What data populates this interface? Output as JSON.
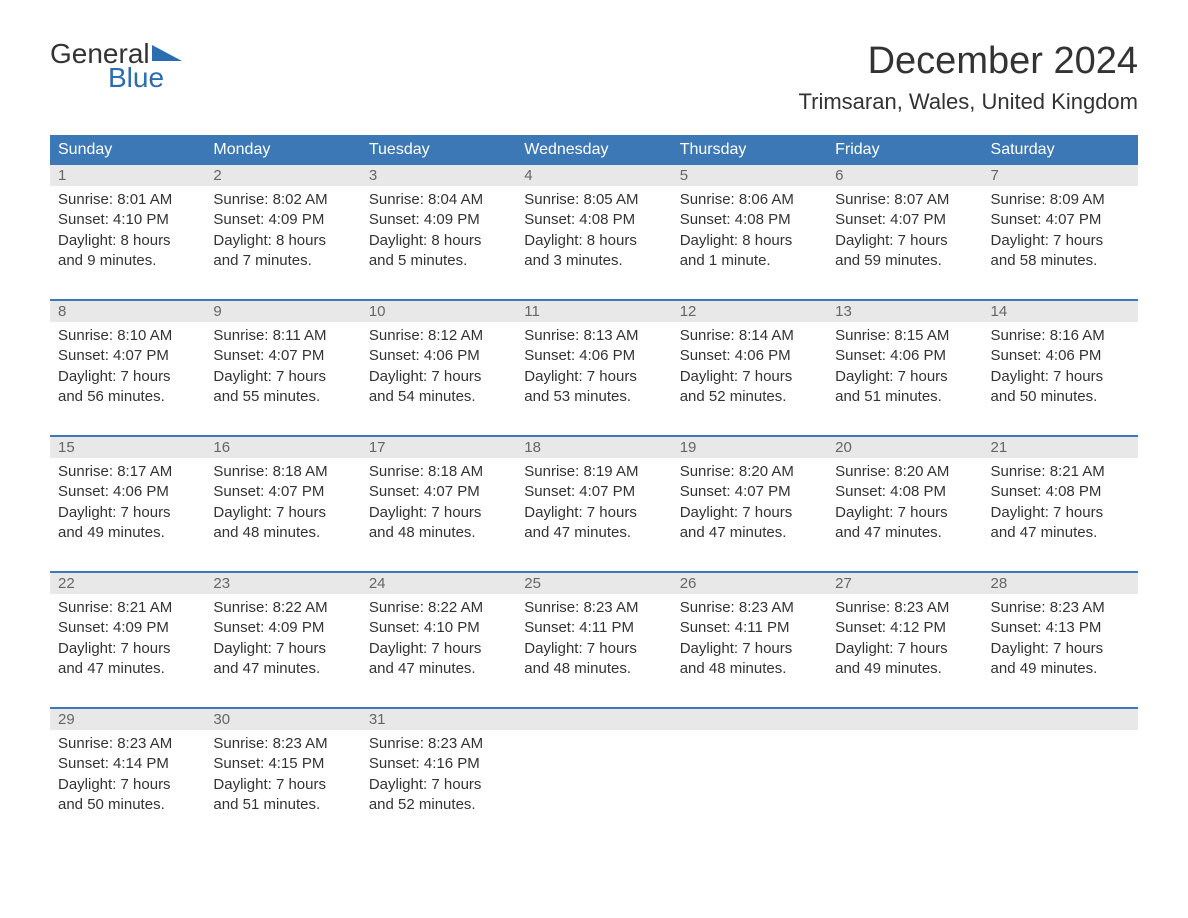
{
  "logo": {
    "general": "General",
    "blue": "Blue"
  },
  "title": "December 2024",
  "location": "Trimsaran, Wales, United Kingdom",
  "colors": {
    "header_bg": "#3b78b5",
    "header_text": "#ffffff",
    "daynum_bg": "#e8e8e8",
    "daynum_text": "#666666",
    "body_text": "#333333",
    "accent": "#2a6db0",
    "page_bg": "#ffffff"
  },
  "typography": {
    "title_fontsize": 38,
    "location_fontsize": 22,
    "header_fontsize": 16,
    "cell_fontsize": 15
  },
  "day_headers": [
    "Sunday",
    "Monday",
    "Tuesday",
    "Wednesday",
    "Thursday",
    "Friday",
    "Saturday"
  ],
  "weeks": [
    [
      {
        "day": "1",
        "sunrise": "Sunrise: 8:01 AM",
        "sunset": "Sunset: 4:10 PM",
        "d1": "Daylight: 8 hours",
        "d2": "and 9 minutes."
      },
      {
        "day": "2",
        "sunrise": "Sunrise: 8:02 AM",
        "sunset": "Sunset: 4:09 PM",
        "d1": "Daylight: 8 hours",
        "d2": "and 7 minutes."
      },
      {
        "day": "3",
        "sunrise": "Sunrise: 8:04 AM",
        "sunset": "Sunset: 4:09 PM",
        "d1": "Daylight: 8 hours",
        "d2": "and 5 minutes."
      },
      {
        "day": "4",
        "sunrise": "Sunrise: 8:05 AM",
        "sunset": "Sunset: 4:08 PM",
        "d1": "Daylight: 8 hours",
        "d2": "and 3 minutes."
      },
      {
        "day": "5",
        "sunrise": "Sunrise: 8:06 AM",
        "sunset": "Sunset: 4:08 PM",
        "d1": "Daylight: 8 hours",
        "d2": "and 1 minute."
      },
      {
        "day": "6",
        "sunrise": "Sunrise: 8:07 AM",
        "sunset": "Sunset: 4:07 PM",
        "d1": "Daylight: 7 hours",
        "d2": "and 59 minutes."
      },
      {
        "day": "7",
        "sunrise": "Sunrise: 8:09 AM",
        "sunset": "Sunset: 4:07 PM",
        "d1": "Daylight: 7 hours",
        "d2": "and 58 minutes."
      }
    ],
    [
      {
        "day": "8",
        "sunrise": "Sunrise: 8:10 AM",
        "sunset": "Sunset: 4:07 PM",
        "d1": "Daylight: 7 hours",
        "d2": "and 56 minutes."
      },
      {
        "day": "9",
        "sunrise": "Sunrise: 8:11 AM",
        "sunset": "Sunset: 4:07 PM",
        "d1": "Daylight: 7 hours",
        "d2": "and 55 minutes."
      },
      {
        "day": "10",
        "sunrise": "Sunrise: 8:12 AM",
        "sunset": "Sunset: 4:06 PM",
        "d1": "Daylight: 7 hours",
        "d2": "and 54 minutes."
      },
      {
        "day": "11",
        "sunrise": "Sunrise: 8:13 AM",
        "sunset": "Sunset: 4:06 PM",
        "d1": "Daylight: 7 hours",
        "d2": "and 53 minutes."
      },
      {
        "day": "12",
        "sunrise": "Sunrise: 8:14 AM",
        "sunset": "Sunset: 4:06 PM",
        "d1": "Daylight: 7 hours",
        "d2": "and 52 minutes."
      },
      {
        "day": "13",
        "sunrise": "Sunrise: 8:15 AM",
        "sunset": "Sunset: 4:06 PM",
        "d1": "Daylight: 7 hours",
        "d2": "and 51 minutes."
      },
      {
        "day": "14",
        "sunrise": "Sunrise: 8:16 AM",
        "sunset": "Sunset: 4:06 PM",
        "d1": "Daylight: 7 hours",
        "d2": "and 50 minutes."
      }
    ],
    [
      {
        "day": "15",
        "sunrise": "Sunrise: 8:17 AM",
        "sunset": "Sunset: 4:06 PM",
        "d1": "Daylight: 7 hours",
        "d2": "and 49 minutes."
      },
      {
        "day": "16",
        "sunrise": "Sunrise: 8:18 AM",
        "sunset": "Sunset: 4:07 PM",
        "d1": "Daylight: 7 hours",
        "d2": "and 48 minutes."
      },
      {
        "day": "17",
        "sunrise": "Sunrise: 8:18 AM",
        "sunset": "Sunset: 4:07 PM",
        "d1": "Daylight: 7 hours",
        "d2": "and 48 minutes."
      },
      {
        "day": "18",
        "sunrise": "Sunrise: 8:19 AM",
        "sunset": "Sunset: 4:07 PM",
        "d1": "Daylight: 7 hours",
        "d2": "and 47 minutes."
      },
      {
        "day": "19",
        "sunrise": "Sunrise: 8:20 AM",
        "sunset": "Sunset: 4:07 PM",
        "d1": "Daylight: 7 hours",
        "d2": "and 47 minutes."
      },
      {
        "day": "20",
        "sunrise": "Sunrise: 8:20 AM",
        "sunset": "Sunset: 4:08 PM",
        "d1": "Daylight: 7 hours",
        "d2": "and 47 minutes."
      },
      {
        "day": "21",
        "sunrise": "Sunrise: 8:21 AM",
        "sunset": "Sunset: 4:08 PM",
        "d1": "Daylight: 7 hours",
        "d2": "and 47 minutes."
      }
    ],
    [
      {
        "day": "22",
        "sunrise": "Sunrise: 8:21 AM",
        "sunset": "Sunset: 4:09 PM",
        "d1": "Daylight: 7 hours",
        "d2": "and 47 minutes."
      },
      {
        "day": "23",
        "sunrise": "Sunrise: 8:22 AM",
        "sunset": "Sunset: 4:09 PM",
        "d1": "Daylight: 7 hours",
        "d2": "and 47 minutes."
      },
      {
        "day": "24",
        "sunrise": "Sunrise: 8:22 AM",
        "sunset": "Sunset: 4:10 PM",
        "d1": "Daylight: 7 hours",
        "d2": "and 47 minutes."
      },
      {
        "day": "25",
        "sunrise": "Sunrise: 8:23 AM",
        "sunset": "Sunset: 4:11 PM",
        "d1": "Daylight: 7 hours",
        "d2": "and 48 minutes."
      },
      {
        "day": "26",
        "sunrise": "Sunrise: 8:23 AM",
        "sunset": "Sunset: 4:11 PM",
        "d1": "Daylight: 7 hours",
        "d2": "and 48 minutes."
      },
      {
        "day": "27",
        "sunrise": "Sunrise: 8:23 AM",
        "sunset": "Sunset: 4:12 PM",
        "d1": "Daylight: 7 hours",
        "d2": "and 49 minutes."
      },
      {
        "day": "28",
        "sunrise": "Sunrise: 8:23 AM",
        "sunset": "Sunset: 4:13 PM",
        "d1": "Daylight: 7 hours",
        "d2": "and 49 minutes."
      }
    ],
    [
      {
        "day": "29",
        "sunrise": "Sunrise: 8:23 AM",
        "sunset": "Sunset: 4:14 PM",
        "d1": "Daylight: 7 hours",
        "d2": "and 50 minutes."
      },
      {
        "day": "30",
        "sunrise": "Sunrise: 8:23 AM",
        "sunset": "Sunset: 4:15 PM",
        "d1": "Daylight: 7 hours",
        "d2": "and 51 minutes."
      },
      {
        "day": "31",
        "sunrise": "Sunrise: 8:23 AM",
        "sunset": "Sunset: 4:16 PM",
        "d1": "Daylight: 7 hours",
        "d2": "and 52 minutes."
      },
      null,
      null,
      null,
      null
    ]
  ]
}
